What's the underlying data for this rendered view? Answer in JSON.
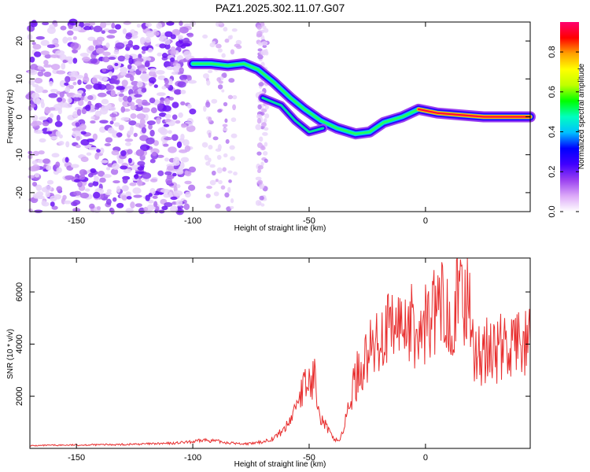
{
  "title": "PAZ1.2025.302.11.07.G07",
  "chart_data": [
    {
      "type": "heatmap",
      "xlabel": "Height of straight line (km)",
      "ylabel": "Frequency (Hz)",
      "xlim": [
        -170,
        45
      ],
      "ylim": [
        -25,
        25
      ],
      "xticks": [
        -150,
        -100,
        -50,
        0
      ],
      "yticks": [
        -20,
        -10,
        0,
        10,
        20
      ],
      "colorbar": {
        "label": "Normalized spectral amplitude",
        "range": [
          0,
          0.95
        ],
        "ticks": [
          0.0,
          0.2,
          0.4,
          0.6,
          0.8
        ],
        "colors": [
          "#ffffff",
          "#dca8f8",
          "#9a40f0",
          "#4000ff",
          "#0000ff",
          "#00c0ff",
          "#00ffc0",
          "#00ff00",
          "#c0ff00",
          "#ffff00",
          "#ffa000",
          "#ff0000",
          "#ff0070"
        ]
      },
      "signal_track": [
        [
          -100,
          14
        ],
        [
          -92,
          14
        ],
        [
          -85,
          13.5
        ],
        [
          -78,
          14
        ],
        [
          -72,
          12.5
        ],
        [
          -65,
          9
        ],
        [
          -58,
          5
        ],
        [
          -52,
          2
        ],
        [
          -45,
          -1
        ],
        [
          -38,
          -3
        ],
        [
          -30,
          -4.5
        ],
        [
          -24,
          -4
        ],
        [
          -18,
          -1.5
        ],
        [
          -10,
          0
        ],
        [
          -3,
          2
        ],
        [
          5,
          1
        ],
        [
          15,
          0.5
        ],
        [
          25,
          0
        ],
        [
          45,
          0
        ]
      ],
      "secondary_track": [
        [
          -70,
          5
        ],
        [
          -62,
          3
        ],
        [
          -56,
          -1
        ],
        [
          -50,
          -4
        ],
        [
          -44,
          -3
        ]
      ]
    },
    {
      "type": "line",
      "xlabel": "Height of straight line (km)",
      "ylabel": "SNR (10 * v/v)",
      "xlim": [
        -170,
        45
      ],
      "ylim": [
        0,
        7300
      ],
      "xticks": [
        -150,
        -100,
        -50,
        0
      ],
      "yticks": [
        2000,
        4000,
        6000
      ],
      "series": [
        {
          "color": "#e83030",
          "x": [
            -170,
            -160,
            -150,
            -140,
            -130,
            -120,
            -110,
            -100,
            -95,
            -90,
            -85,
            -80,
            -75,
            -70,
            -65,
            -60,
            -57,
            -55,
            -53,
            -50,
            -47,
            -45,
            -43,
            -40,
            -37,
            -35,
            -33,
            -30,
            -27,
            -25,
            -22,
            -20,
            -18,
            -15,
            -13,
            -10,
            -8,
            -5,
            -3,
            0,
            3,
            5,
            8,
            10,
            13,
            15,
            18,
            20,
            21,
            25,
            30,
            35,
            40,
            45
          ],
          "y": [
            100,
            120,
            130,
            140,
            150,
            170,
            190,
            250,
            320,
            280,
            220,
            180,
            180,
            250,
            400,
            800,
            1300,
            1900,
            2200,
            2500,
            2700,
            1200,
            900,
            400,
            300,
            800,
            1600,
            2700,
            3200,
            3600,
            3800,
            4300,
            4500,
            4400,
            4600,
            4800,
            4900,
            4600,
            4100,
            4800,
            5100,
            5300,
            5400,
            5300,
            5500,
            5600,
            5700,
            5900,
            3400,
            3700,
            3800,
            3900,
            4000,
            4000
          ]
        }
      ]
    }
  ]
}
